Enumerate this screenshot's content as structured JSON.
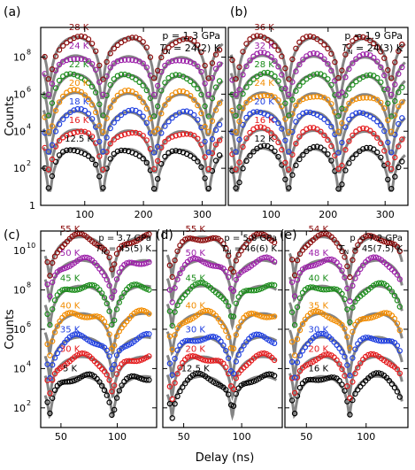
{
  "figure": {
    "ylabel": "Counts",
    "xlabel": "Delay (ns)",
    "top_yticks": [
      "1",
      "10",
      "10",
      "10",
      "10"
    ],
    "top_yticks_exp": [
      "",
      "2",
      "4",
      "6",
      "8"
    ],
    "bottom_yticks": [
      "10",
      "10",
      "10",
      "10",
      "10"
    ],
    "bottom_yticks_exp": [
      "2",
      "4",
      "6",
      "8",
      "10"
    ]
  },
  "colors": {
    "fit": "#707070",
    "series": [
      "#000000",
      "#e41a1c",
      "#1f3fe0",
      "#f28c00",
      "#1a8c1a",
      "#9b1fa8",
      "#8b0a0a"
    ]
  },
  "chart_data": [
    {
      "panel": "(a)",
      "type": "scatter",
      "pressure": "p = 1.3 GPa",
      "tn": "T",
      "tn_sub": "N",
      "tn_value": " = 24(2) K",
      "xlim": [
        25,
        340
      ],
      "xticks": [
        "100",
        "200",
        "300"
      ],
      "xtick_values": [
        100,
        200,
        300
      ],
      "ylim_log10": [
        0,
        9.6
      ],
      "series": [
        {
          "name": "12.5 K",
          "offset_log10": 2
        },
        {
          "name": "16 K",
          "offset_log10": 3
        },
        {
          "name": "18 K",
          "offset_log10": 4
        },
        {
          "name": "20 K",
          "offset_log10": 5
        },
        {
          "name": "22 K",
          "offset_log10": 6
        },
        {
          "name": "24 K",
          "offset_log10": 7
        },
        {
          "name": "28 K",
          "offset_log10": 8
        }
      ]
    },
    {
      "panel": "(b)",
      "type": "scatter",
      "pressure": "p = 1.9 GPa",
      "tn": "T",
      "tn_sub": "N",
      "tn_value": " = 24(3) K",
      "xlim": [
        25,
        340
      ],
      "xticks": [
        "100",
        "200",
        "300"
      ],
      "xtick_values": [
        100,
        200,
        300
      ],
      "ylim_log10": [
        0,
        9.6
      ],
      "series": [
        {
          "name": "12 K",
          "offset_log10": 2
        },
        {
          "name": "16 K",
          "offset_log10": 3
        },
        {
          "name": "20 K",
          "offset_log10": 4
        },
        {
          "name": "24 K",
          "offset_log10": 5
        },
        {
          "name": "28 K",
          "offset_log10": 6
        },
        {
          "name": "32 K",
          "offset_log10": 7
        },
        {
          "name": "36 K",
          "offset_log10": 8
        }
      ]
    },
    {
      "panel": "(c)",
      "type": "scatter",
      "pressure": "p = 3.7 GPa",
      "tn": "T",
      "tn_sub": "N",
      "tn_value": " = 45(5) K",
      "xlim": [
        32,
        135
      ],
      "xticks": [
        "50",
        "100"
      ],
      "xtick_values": [
        50,
        100
      ],
      "ylim_log10": [
        1,
        11
      ],
      "series": [
        {
          "name": "5 K",
          "offset_log10": 2.5
        },
        {
          "name": "30 K",
          "offset_log10": 3.5
        },
        {
          "name": "35 K",
          "offset_log10": 4.5
        },
        {
          "name": "40 K",
          "offset_log10": 5.7
        },
        {
          "name": "45 K",
          "offset_log10": 7.1
        },
        {
          "name": "50 K",
          "offset_log10": 8.4
        },
        {
          "name": "55 K",
          "offset_log10": 9.6
        }
      ]
    },
    {
      "panel": "(d)",
      "type": "scatter",
      "pressure": "p = 5.8 GPa",
      "tn": "T",
      "tn_sub": "N",
      "tn_value": " = 46(6) K",
      "xlim": [
        32,
        135
      ],
      "xticks": [
        "50",
        "100"
      ],
      "xtick_values": [
        50,
        100
      ],
      "ylim_log10": [
        1,
        11
      ],
      "series": [
        {
          "name": "12.5 K",
          "offset_log10": 2.5
        },
        {
          "name": "20 K",
          "offset_log10": 3.5
        },
        {
          "name": "30 K",
          "offset_log10": 4.5
        },
        {
          "name": "40 K",
          "offset_log10": 5.7
        },
        {
          "name": "45 K",
          "offset_log10": 7.1
        },
        {
          "name": "50 K",
          "offset_log10": 8.4
        },
        {
          "name": "55 K",
          "offset_log10": 9.6
        }
      ]
    },
    {
      "panel": "(e)",
      "type": "scatter",
      "pressure": "p = 7.2 GPa",
      "tn": "T",
      "tn_sub": "N",
      "tn_value": " = 45(7.5) K",
      "xlim": [
        32,
        135
      ],
      "xticks": [
        "50",
        "100"
      ],
      "xtick_values": [
        50,
        100
      ],
      "ylim_log10": [
        1,
        11
      ],
      "series": [
        {
          "name": "16 K",
          "offset_log10": 2.5
        },
        {
          "name": "20 K",
          "offset_log10": 3.5
        },
        {
          "name": "30 K",
          "offset_log10": 4.5
        },
        {
          "name": "35 K",
          "offset_log10": 5.7
        },
        {
          "name": "40 K",
          "offset_log10": 7.1
        },
        {
          "name": "48 K",
          "offset_log10": 8.4
        },
        {
          "name": "54 K",
          "offset_log10": 9.6
        }
      ]
    }
  ]
}
